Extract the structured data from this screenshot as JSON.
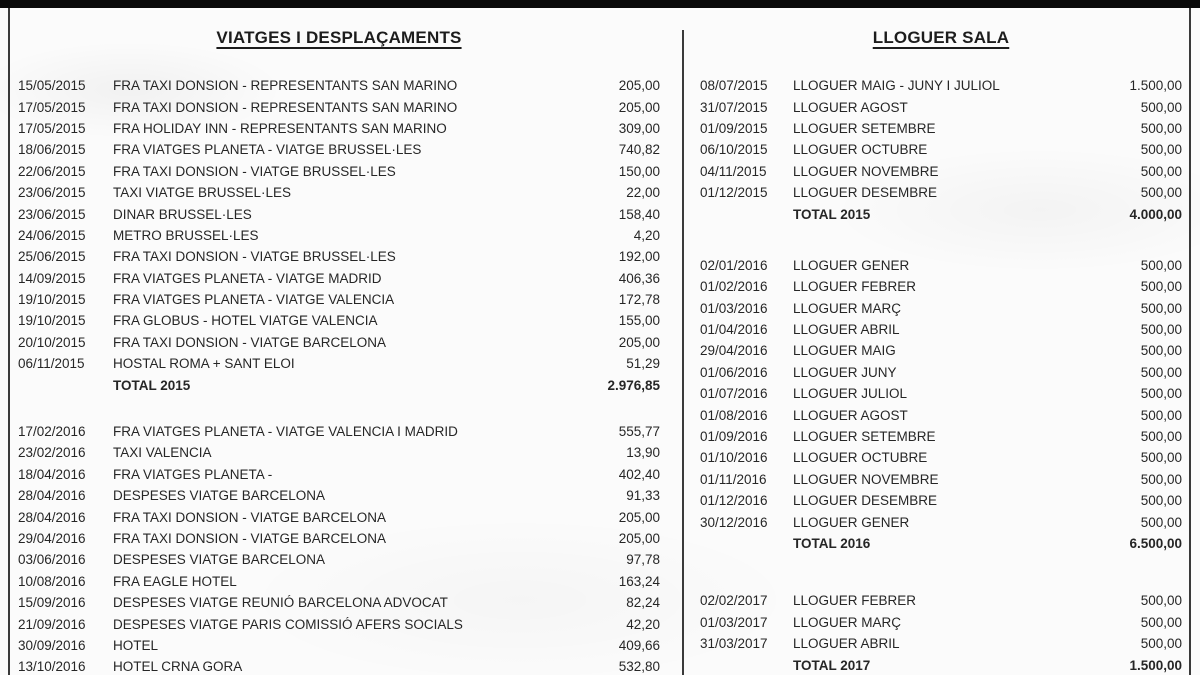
{
  "colors": {
    "ink": "#262626",
    "paper": "#fbfbfb",
    "edge": "#3a3a3a"
  },
  "columns": [
    {
      "title": "VIATGES I DESPLAÇAMENTS",
      "sections": [
        {
          "rows": [
            {
              "date": "15/05/2015",
              "desc": "FRA TAXI DONSION - REPRESENTANTS SAN MARINO",
              "amount": "205,00"
            },
            {
              "date": "17/05/2015",
              "desc": "FRA TAXI DONSION - REPRESENTANTS SAN MARINO",
              "amount": "205,00"
            },
            {
              "date": "17/05/2015",
              "desc": "FRA HOLIDAY INN - REPRESENTANTS SAN MARINO",
              "amount": "309,00"
            },
            {
              "date": "18/06/2015",
              "desc": "FRA VIATGES PLANETA - VIATGE BRUSSEL·LES",
              "amount": "740,82"
            },
            {
              "date": "22/06/2015",
              "desc": "FRA TAXI DONSION - VIATGE BRUSSEL·LES",
              "amount": "150,00"
            },
            {
              "date": "23/06/2015",
              "desc": "TAXI VIATGE BRUSSEL·LES",
              "amount": "22,00"
            },
            {
              "date": "23/06/2015",
              "desc": "DINAR BRUSSEL·LES",
              "amount": "158,40"
            },
            {
              "date": "24/06/2015",
              "desc": "METRO BRUSSEL·LES",
              "amount": "4,20"
            },
            {
              "date": "25/06/2015",
              "desc": "FRA TAXI DONSION - VIATGE BRUSSEL·LES",
              "amount": "192,00"
            },
            {
              "date": "14/09/2015",
              "desc": "FRA VIATGES PLANETA - VIATGE MADRID",
              "amount": "406,36"
            },
            {
              "date": "19/10/2015",
              "desc": "FRA VIATGES PLANETA - VIATGE VALENCIA",
              "amount": "172,78"
            },
            {
              "date": "19/10/2015",
              "desc": "FRA GLOBUS - HOTEL VIATGE VALENCIA",
              "amount": "155,00"
            },
            {
              "date": "20/10/2015",
              "desc": "FRA TAXI DONSION - VIATGE BARCELONA",
              "amount": "205,00"
            },
            {
              "date": "06/11/2015",
              "desc": "HOSTAL ROMA + SANT ELOI",
              "amount": "51,29"
            },
            {
              "date": "",
              "desc": "TOTAL 2015",
              "amount": "2.976,85",
              "bold": true
            }
          ]
        },
        {
          "rows": [
            {
              "date": "17/02/2016",
              "desc": "FRA VIATGES PLANETA - VIATGE VALENCIA I MADRID",
              "amount": "555,77"
            },
            {
              "date": "23/02/2016",
              "desc": "TAXI VALENCIA",
              "amount": "13,90"
            },
            {
              "date": "18/04/2016",
              "desc": "FRA VIATGES PLANETA -",
              "amount": "402,40"
            },
            {
              "date": "28/04/2016",
              "desc": "DESPESES VIATGE BARCELONA",
              "amount": "91,33"
            },
            {
              "date": "28/04/2016",
              "desc": "FRA TAXI DONSION - VIATGE BARCELONA",
              "amount": "205,00"
            },
            {
              "date": "29/04/2016",
              "desc": "FRA TAXI DONSION - VIATGE BARCELONA",
              "amount": "205,00"
            },
            {
              "date": "03/06/2016",
              "desc": "DESPESES VIATGE BARCELONA",
              "amount": "97,78"
            },
            {
              "date": "10/08/2016",
              "desc": "FRA EAGLE HOTEL",
              "amount": "163,24"
            },
            {
              "date": "15/09/2016",
              "desc": "DESPESES VIATGE REUNIÓ BARCELONA ADVOCAT",
              "amount": "82,24"
            },
            {
              "date": "21/09/2016",
              "desc": "DESPESES VIATGE PARIS COMISSIÓ AFERS SOCIALS",
              "amount": "42,20"
            },
            {
              "date": "30/09/2016",
              "desc": "HOTEL",
              "amount": "409,66"
            },
            {
              "date": "13/10/2016",
              "desc": "HOTEL CRNA GORA",
              "amount": "532,80"
            }
          ]
        }
      ]
    },
    {
      "title": "LLOGUER SALA",
      "sections": [
        {
          "rows": [
            {
              "date": "08/07/2015",
              "desc": "LLOGUER MAIG - JUNY I JULIOL",
              "amount": "1.500,00"
            },
            {
              "date": "31/07/2015",
              "desc": "LLOGUER AGOST",
              "amount": "500,00"
            },
            {
              "date": "01/09/2015",
              "desc": "LLOGUER SETEMBRE",
              "amount": "500,00"
            },
            {
              "date": "06/10/2015",
              "desc": "LLOGUER OCTUBRE",
              "amount": "500,00"
            },
            {
              "date": "04/11/2015",
              "desc": "LLOGUER NOVEMBRE",
              "amount": "500,00"
            },
            {
              "date": "01/12/2015",
              "desc": "LLOGUER DESEMBRE",
              "amount": "500,00"
            },
            {
              "date": "",
              "desc": "TOTAL 2015",
              "amount": "4.000,00",
              "bold": true
            }
          ]
        },
        {
          "rows": [
            {
              "date": "02/01/2016",
              "desc": "LLOGUER GENER",
              "amount": "500,00"
            },
            {
              "date": "01/02/2016",
              "desc": "LLOGUER FEBRER",
              "amount": "500,00"
            },
            {
              "date": "01/03/2016",
              "desc": "LLOGUER MARÇ",
              "amount": "500,00"
            },
            {
              "date": "01/04/2016",
              "desc": "LLOGUER ABRIL",
              "amount": "500,00"
            },
            {
              "date": "29/04/2016",
              "desc": "LLOGUER MAIG",
              "amount": "500,00"
            },
            {
              "date": "01/06/2016",
              "desc": "LLOGUER JUNY",
              "amount": "500,00"
            },
            {
              "date": "01/07/2016",
              "desc": "LLOGUER JULIOL",
              "amount": "500,00"
            },
            {
              "date": "01/08/2016",
              "desc": "LLOGUER AGOST",
              "amount": "500,00"
            },
            {
              "date": "01/09/2016",
              "desc": "LLOGUER SETEMBRE",
              "amount": "500,00"
            },
            {
              "date": "01/10/2016",
              "desc": "LLOGUER OCTUBRE",
              "amount": "500,00"
            },
            {
              "date": "01/11/2016",
              "desc": "LLOGUER NOVEMBRE",
              "amount": "500,00"
            },
            {
              "date": "01/12/2016",
              "desc": "LLOGUER DESEMBRE",
              "amount": "500,00"
            },
            {
              "date": "30/12/2016",
              "desc": "LLOGUER GENER",
              "amount": "500,00"
            },
            {
              "date": "",
              "desc": "TOTAL 2016",
              "amount": "6.500,00",
              "bold": true
            }
          ]
        },
        {
          "rows": [
            {
              "date": "02/02/2017",
              "desc": "LLOGUER FEBRER",
              "amount": "500,00"
            },
            {
              "date": "01/03/2017",
              "desc": "LLOGUER MARÇ",
              "amount": "500,00"
            },
            {
              "date": "31/03/2017",
              "desc": "LLOGUER ABRIL",
              "amount": "500,00"
            },
            {
              "date": "",
              "desc": "TOTAL 2017",
              "amount": "1.500,00",
              "bold": true
            }
          ]
        }
      ]
    }
  ]
}
